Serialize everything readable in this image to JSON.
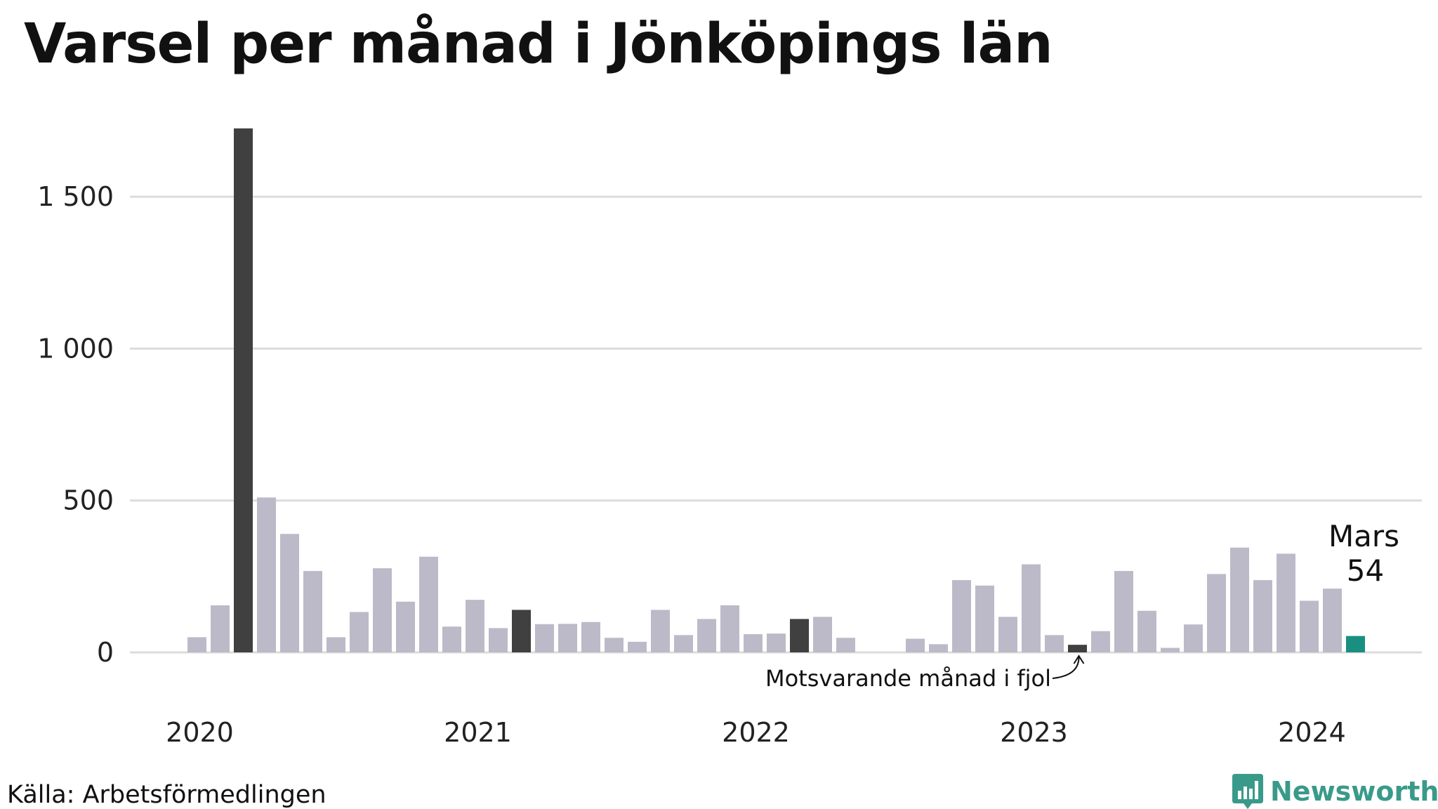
{
  "chart_data": {
    "type": "bar",
    "title": "Varsel per månad i Jönköpings län",
    "xlabel": "",
    "ylabel": "",
    "ylim": [
      0,
      1750
    ],
    "yticks": [
      0,
      500,
      1000,
      1500
    ],
    "ytick_labels": [
      "0",
      "500",
      "1 000",
      "1 500"
    ],
    "xtick_labels": [
      "2020",
      "2021",
      "2022",
      "2023",
      "2024"
    ],
    "grid": true,
    "legend": "none",
    "values": [
      50,
      155,
      1725,
      510,
      390,
      268,
      50,
      133,
      277,
      167,
      315,
      85,
      173,
      80,
      140,
      93,
      94,
      100,
      48,
      35,
      140,
      57,
      110,
      155,
      60,
      62,
      110,
      117,
      48,
      0,
      0,
      45,
      27,
      238,
      220,
      117,
      290,
      57,
      25,
      70,
      268,
      137,
      15,
      92,
      258,
      345,
      238,
      325,
      170,
      210,
      54
    ],
    "highlight_indices": [
      2,
      14,
      26,
      38
    ],
    "current_index": 50,
    "colors": {
      "default": "#bcbac8",
      "same_month": "#404040",
      "current": "#1a8f80",
      "grid": "#dcdcdc"
    },
    "annotations": {
      "current_month": "Mars",
      "current_value": "54",
      "same_month_label": "Motsvarande månad i fjol"
    }
  },
  "footer": {
    "source": "Källa: Arbetsförmedlingen",
    "brand": "Newsworthy",
    "brand_icon": "newsworthy-logo-icon"
  }
}
